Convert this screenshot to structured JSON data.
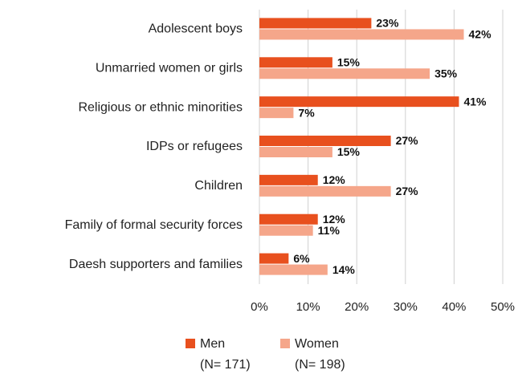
{
  "chart_data": {
    "type": "bar",
    "orientation": "horizontal",
    "categories": [
      "Adolescent boys",
      "Unmarried women or girls",
      "Religious or ethnic minorities",
      "IDPs or refugees",
      "Children",
      "Family of formal security forces",
      "Daesh supporters and families"
    ],
    "series": [
      {
        "name": "Men",
        "n_label": "(N= 171)",
        "color": "#e8501e",
        "values": [
          23,
          15,
          41,
          27,
          12,
          12,
          6
        ],
        "value_labels": [
          "23%",
          "15%",
          "41%",
          "27%",
          "12%",
          "12%",
          "6%"
        ]
      },
      {
        "name": "Women",
        "n_label": "(N= 198)",
        "color": "#f5a68a",
        "values": [
          42,
          35,
          7,
          15,
          27,
          11,
          14
        ],
        "value_labels": [
          "42%",
          "35%",
          "7%",
          "15%",
          "27%",
          "11%",
          "14%"
        ]
      }
    ],
    "xlim": [
      0,
      50
    ],
    "xticks": [
      {
        "value": 0,
        "label": "0%"
      },
      {
        "value": 10,
        "label": "10%"
      },
      {
        "value": 20,
        "label": "20%"
      },
      {
        "value": 30,
        "label": "30%"
      },
      {
        "value": 40,
        "label": "40%"
      },
      {
        "value": 50,
        "label": "50%"
      }
    ],
    "grid": true,
    "legend": "bottom"
  }
}
